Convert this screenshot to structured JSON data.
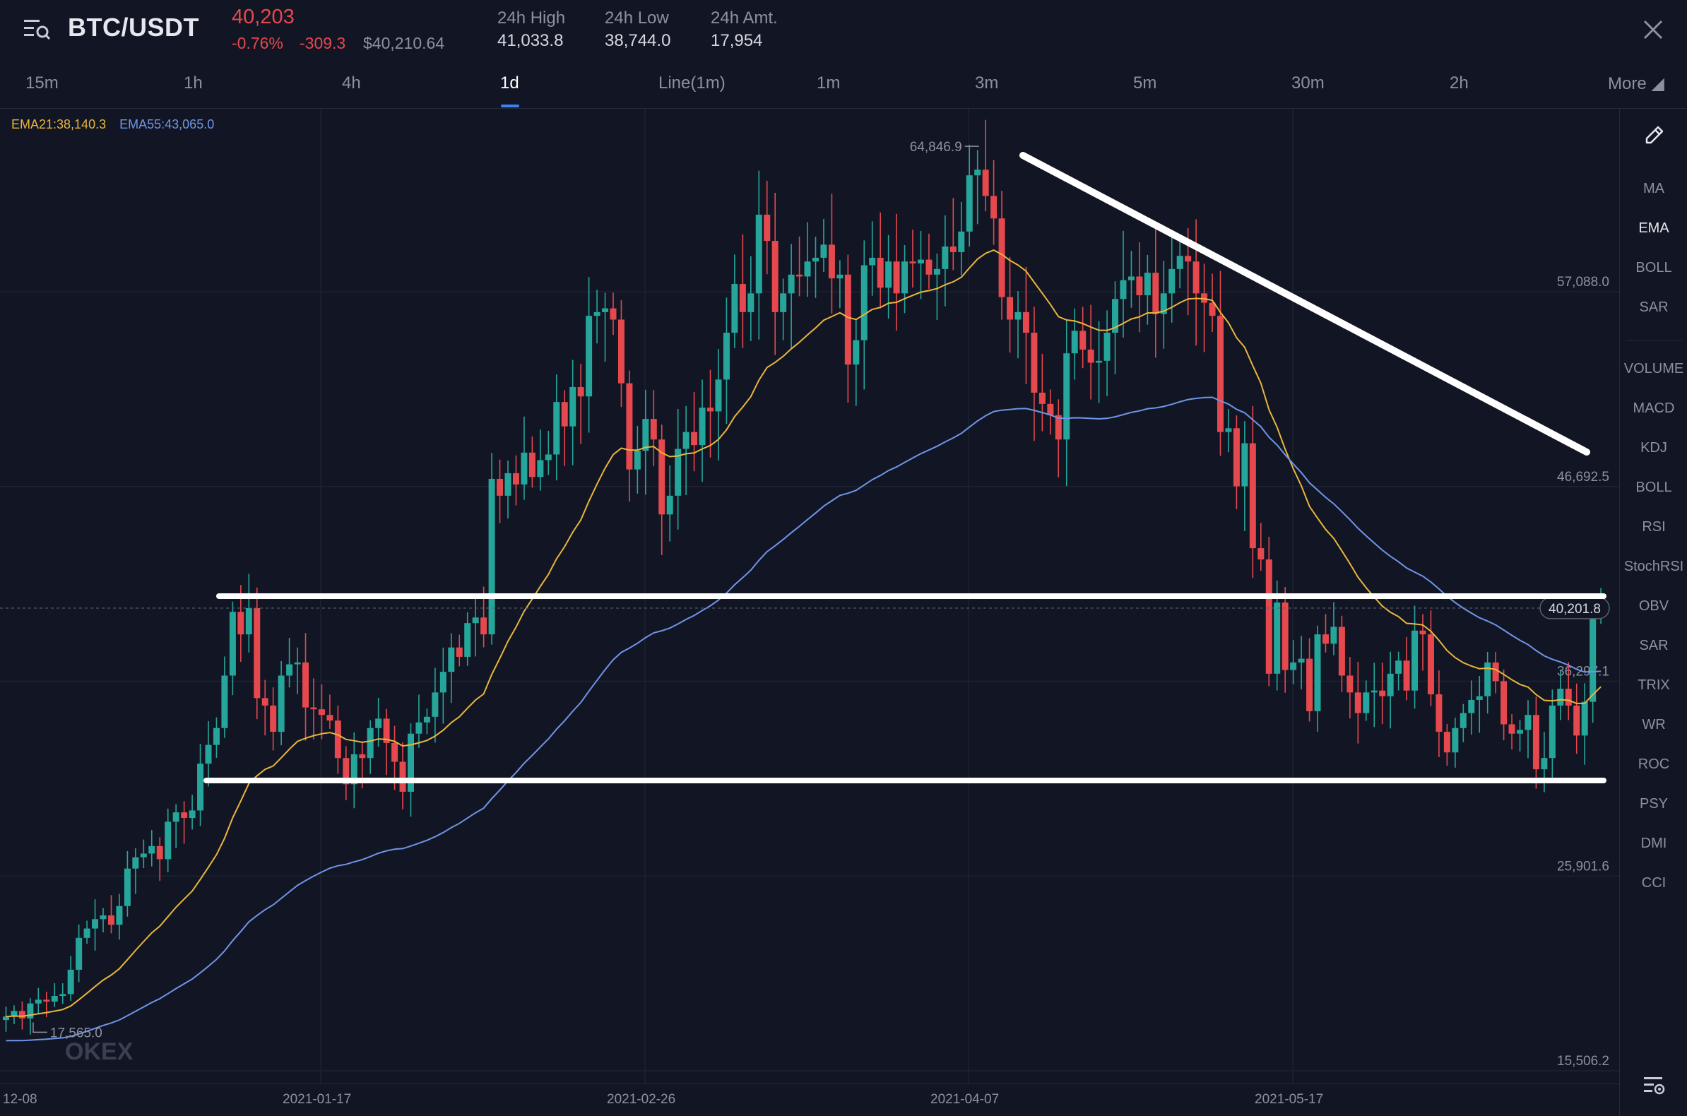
{
  "header": {
    "pair": "BTC/USDT",
    "last_price": "40,203",
    "change_pct": "-0.76%",
    "change_abs": "-309.3",
    "usd_price": "$40,210.64",
    "stats": [
      {
        "label": "24h High",
        "value": "41,033.8"
      },
      {
        "label": "24h Low",
        "value": "38,744.0"
      },
      {
        "label": "24h Amt.",
        "value": "17,954"
      }
    ]
  },
  "tabs": [
    {
      "label": "15m"
    },
    {
      "label": "1h"
    },
    {
      "label": "4h"
    },
    {
      "label": "1d",
      "active": true
    },
    {
      "label": "Line(1m)"
    },
    {
      "label": "1m"
    },
    {
      "label": "3m"
    },
    {
      "label": "5m"
    },
    {
      "label": "30m"
    },
    {
      "label": "2h"
    },
    {
      "label": "More ◢"
    }
  ],
  "legend": {
    "ema21": "EMA21:38,140.3",
    "ema55": "EMA55:43,065.0"
  },
  "sidebar": {
    "items": [
      {
        "label": "MA"
      },
      {
        "label": "EMA",
        "active": true
      },
      {
        "label": "BOLL"
      },
      {
        "label": "SAR"
      },
      {
        "label": "VOLUME"
      },
      {
        "label": "MACD"
      },
      {
        "label": "KDJ"
      },
      {
        "label": "BOLL"
      },
      {
        "label": "RSI"
      },
      {
        "label": "StochRSI"
      },
      {
        "label": "OBV"
      },
      {
        "label": "SAR"
      },
      {
        "label": "TRIX"
      },
      {
        "label": "WR"
      },
      {
        "label": "ROC"
      },
      {
        "label": "PSY"
      },
      {
        "label": "DMI"
      },
      {
        "label": "CCI"
      }
    ]
  },
  "chart_data": {
    "type": "candlestick",
    "price_levels": [
      "57,088.0",
      "46,692.5",
      "36,297.1",
      "25,901.6",
      "15,506.2"
    ],
    "current_price_tag": "40,201.8",
    "high_marker": "64,846.9",
    "low_marker": "17,565.0",
    "x_labels": [
      "12-08",
      "2021-01-17",
      "2021-02-26",
      "2021-04-07",
      "2021-05-17"
    ],
    "watermark": "OKEX",
    "colors": {
      "up": "#26a69a",
      "down": "#e5484d",
      "ema21": "#e9b63b",
      "ema55": "#6f95e8",
      "trendline": "#ffffff"
    },
    "ylim": [
      15506.2,
      67000
    ],
    "closes": [
      18400,
      18700,
      18300,
      19100,
      19300,
      19200,
      19500,
      19600,
      20900,
      22600,
      23100,
      23600,
      23800,
      23300,
      24300,
      26300,
      26900,
      27100,
      27500,
      26800,
      28800,
      29300,
      29000,
      29400,
      31900,
      32900,
      33800,
      36600,
      40000,
      38800,
      40200,
      35400,
      35000,
      33600,
      36600,
      37200,
      37300,
      34900,
      34800,
      34500,
      34200,
      32200,
      30800,
      32400,
      32200,
      33800,
      34300,
      33000,
      32000,
      30400,
      33500,
      34100,
      34400,
      35700,
      36800,
      38100,
      37600,
      39400,
      39700,
      38800,
      47100,
      46200,
      47400,
      46800,
      48500,
      47200,
      48100,
      48400,
      51200,
      49900,
      52000,
      51500,
      55800,
      56000,
      56200,
      55600,
      52200,
      47600,
      48600,
      50300,
      49200,
      45200,
      46200,
      48700,
      49600,
      48900,
      50900,
      50700,
      52400,
      54900,
      57500,
      56000,
      57000,
      61200,
      59800,
      56000,
      57000,
      58000,
      57900,
      58700,
      58900,
      59600,
      57800,
      58000,
      53200,
      54500,
      58500,
      58900,
      57300,
      58700,
      57000,
      58700,
      58600,
      58800,
      58000,
      58300,
      59500,
      59200,
      60300,
      63300,
      63600,
      62200,
      61000,
      56800,
      55600,
      56000,
      54900,
      51700,
      51100,
      50500,
      49200,
      53800,
      55000,
      54000,
      53300,
      53400,
      54900,
      56700,
      57700,
      57900,
      56900,
      58100,
      55900,
      57000,
      58300,
      59000,
      58700,
      57000,
      56500,
      55800,
      49600,
      49800,
      46700,
      49000,
      43400,
      42800,
      36700,
      40500,
      36900,
      37300,
      37500,
      34700,
      38800,
      38300,
      39200,
      36600,
      35700,
      34600,
      35700,
      35800,
      35500,
      36700,
      37400,
      35800,
      39000,
      38800,
      35600,
      33600,
      32500,
      33800,
      34600,
      35300,
      35500,
      37300,
      36300,
      34000,
      33500,
      33700,
      34500,
      31600,
      32200,
      35000,
      35900,
      35000,
      33400,
      35200,
      40200,
      40203
    ]
  }
}
